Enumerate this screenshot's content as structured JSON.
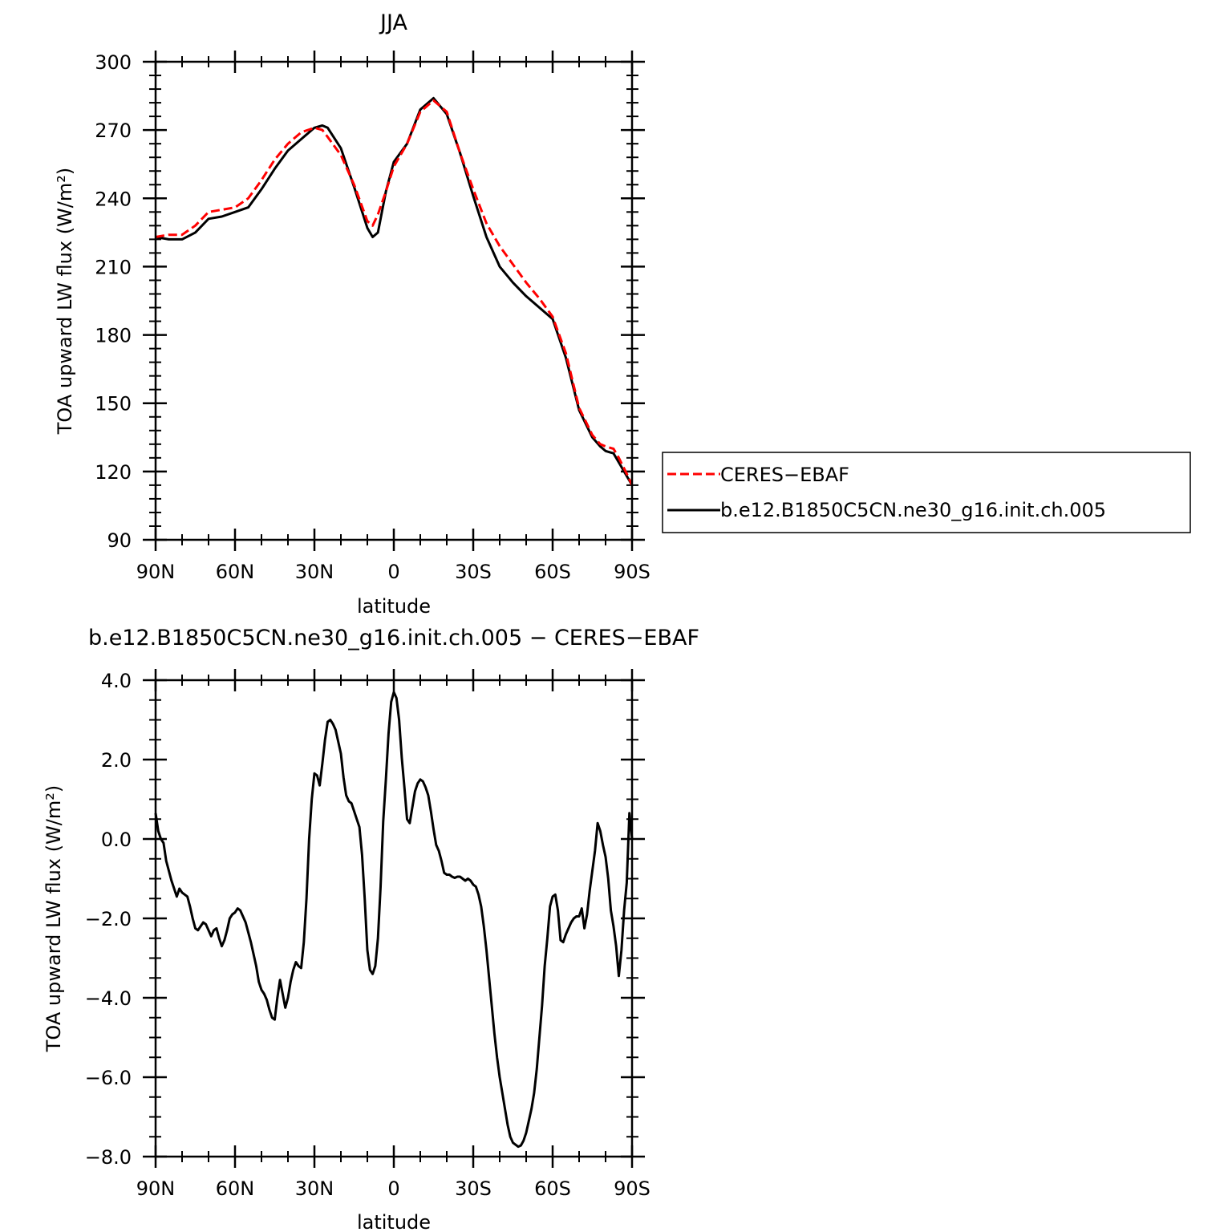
{
  "chart_data": [
    {
      "type": "line",
      "title": "JJA",
      "xlabel": "latitude",
      "ylabel": "TOA upward LW flux (W/m²)",
      "xlim": [
        90,
        -90
      ],
      "ylim": [
        90,
        300
      ],
      "xticks": [
        90,
        60,
        30,
        0,
        -30,
        -60,
        -90
      ],
      "xtick_labels": [
        "90N",
        "60N",
        "30N",
        "0",
        "30S",
        "60S",
        "90S"
      ],
      "yticks": [
        90,
        120,
        150,
        180,
        210,
        240,
        270,
        300
      ],
      "ytick_labels": [
        "90",
        "120",
        "150",
        "180",
        "210",
        "240",
        "270",
        "300"
      ],
      "grid": false,
      "legend_position": "right",
      "series": [
        {
          "name": "CERES−EBAF",
          "color": "#ff0000",
          "style": "dashed",
          "x": [
            90,
            85,
            80,
            75,
            70,
            65,
            60,
            55,
            50,
            45,
            40,
            35,
            30,
            27,
            25,
            20,
            15,
            10,
            8,
            6,
            3,
            0,
            -5,
            -10,
            -15,
            -20,
            -25,
            -30,
            -35,
            -40,
            -45,
            -50,
            -55,
            -60,
            -65,
            -70,
            -75,
            -78,
            -80,
            -83,
            -85,
            -88,
            -90
          ],
          "y": [
            223,
            224,
            224,
            228,
            234,
            235,
            236,
            240,
            248,
            257,
            264,
            269,
            271,
            270,
            267,
            259,
            246,
            230,
            228,
            233,
            243,
            254,
            264,
            278,
            283,
            278,
            260,
            244,
            229,
            219,
            211,
            203,
            196,
            188,
            172,
            148,
            136,
            132,
            131,
            130,
            126,
            119,
            114
          ]
        },
        {
          "name": "b.e12.B1850C5CN.ne30_g16.init.ch.005",
          "color": "#000000",
          "style": "solid",
          "x": [
            90,
            85,
            80,
            75,
            70,
            65,
            60,
            55,
            50,
            45,
            40,
            35,
            30,
            27,
            25,
            20,
            15,
            10,
            8,
            6,
            3,
            0,
            -5,
            -10,
            -15,
            -20,
            -25,
            -30,
            -35,
            -40,
            -45,
            -50,
            -55,
            -60,
            -65,
            -70,
            -75,
            -78,
            -80,
            -83,
            -85,
            -88,
            -90
          ],
          "y": [
            223,
            222,
            222,
            225,
            231,
            232,
            234,
            236,
            244,
            253,
            261,
            266,
            271,
            272,
            271,
            262,
            245,
            227,
            223,
            225,
            243,
            256,
            264,
            279,
            284,
            277,
            260,
            241,
            223,
            210,
            203,
            197,
            192,
            187,
            170,
            147,
            135,
            131,
            129,
            128,
            124,
            118,
            114
          ]
        }
      ]
    },
    {
      "type": "line",
      "title": "b.e12.B1850C5CN.ne30_g16.init.ch.005 − CERES−EBAF",
      "xlabel": "latitude",
      "ylabel": "TOA upward LW flux (W/m²)",
      "xlim": [
        90,
        -90
      ],
      "ylim": [
        -8,
        4
      ],
      "xticks": [
        90,
        60,
        30,
        0,
        -30,
        -60,
        -90
      ],
      "xtick_labels": [
        "90N",
        "60N",
        "30N",
        "0",
        "30S",
        "60S",
        "90S"
      ],
      "yticks": [
        -8,
        -6,
        -4,
        -2,
        0,
        2,
        4
      ],
      "ytick_labels": [
        "−8.0",
        "−6.0",
        "−4.0",
        "−2.0",
        "0.0",
        "2.0",
        "4.0"
      ],
      "grid": false,
      "series": [
        {
          "color": "#000000",
          "style": "solid",
          "x": [
            90,
            89,
            88,
            87,
            86,
            85,
            84,
            83,
            82,
            81,
            80,
            79,
            78,
            77,
            76,
            75,
            74,
            73,
            72,
            71,
            70,
            69,
            68,
            67,
            66,
            65,
            64,
            63,
            62,
            61,
            60,
            59,
            58,
            57,
            56,
            55,
            54,
            53,
            52,
            51,
            50,
            49,
            48,
            47,
            46,
            45,
            44,
            43,
            42,
            41,
            40,
            39,
            38,
            37,
            36,
            35,
            34,
            33,
            32,
            31,
            30,
            29,
            28,
            27,
            26,
            25,
            24,
            23,
            22,
            21,
            20,
            19,
            18,
            17,
            16,
            15,
            14,
            13,
            12,
            11,
            10,
            9,
            8,
            7,
            6,
            5,
            4,
            3,
            2,
            1,
            0,
            -1,
            -2,
            -3,
            -4,
            -5,
            -6,
            -7,
            -8,
            -9,
            -10,
            -11,
            -12,
            -13,
            -14,
            -15,
            -16,
            -17,
            -18,
            -19,
            -20,
            -21,
            -22,
            -23,
            -24,
            -25,
            -26,
            -27,
            -28,
            -29,
            -30,
            -31,
            -32,
            -33,
            -34,
            -35,
            -36,
            -37,
            -38,
            -39,
            -40,
            -41,
            -42,
            -43,
            -44,
            -45,
            -46,
            -47,
            -48,
            -49,
            -50,
            -51,
            -52,
            -53,
            -54,
            -55,
            -56,
            -57,
            -58,
            -59,
            -60,
            -61,
            -62,
            -63,
            -64,
            -65,
            -66,
            -67,
            -68,
            -69,
            -70,
            -71,
            -72,
            -73,
            -74,
            -75,
            -76,
            -77,
            -78,
            -79,
            -80,
            -81,
            -82,
            -83,
            -84,
            -85,
            -86,
            -87,
            -88,
            -89,
            -90
          ],
          "y": [
            0.65,
            0.2,
            0.0,
            -0.1,
            -0.55,
            -0.8,
            -1.05,
            -1.25,
            -1.45,
            -1.25,
            -1.35,
            -1.4,
            -1.45,
            -1.7,
            -2.0,
            -2.25,
            -2.3,
            -2.2,
            -2.1,
            -2.15,
            -2.3,
            -2.45,
            -2.3,
            -2.25,
            -2.5,
            -2.7,
            -2.55,
            -2.3,
            -2.0,
            -1.9,
            -1.85,
            -1.75,
            -1.8,
            -1.95,
            -2.1,
            -2.35,
            -2.6,
            -2.9,
            -3.2,
            -3.6,
            -3.8,
            -3.9,
            -4.05,
            -4.3,
            -4.5,
            -4.55,
            -4.0,
            -3.55,
            -3.9,
            -4.25,
            -4.0,
            -3.6,
            -3.3,
            -3.1,
            -3.2,
            -3.25,
            -2.6,
            -1.5,
            0.0,
            1.0,
            1.65,
            1.6,
            1.35,
            1.9,
            2.5,
            2.95,
            3.0,
            2.9,
            2.75,
            2.45,
            2.15,
            1.55,
            1.1,
            0.95,
            0.9,
            0.7,
            0.5,
            0.3,
            -0.4,
            -1.5,
            -2.8,
            -3.3,
            -3.4,
            -3.2,
            -2.5,
            -1.2,
            0.45,
            1.5,
            2.65,
            3.45,
            3.7,
            3.55,
            3.0,
            2.05,
            1.3,
            0.5,
            0.4,
            0.8,
            1.2,
            1.4,
            1.5,
            1.45,
            1.3,
            1.1,
            0.7,
            0.25,
            -0.15,
            -0.3,
            -0.55,
            -0.85,
            -0.9,
            -0.9,
            -0.95,
            -0.98,
            -0.95,
            -0.95,
            -1.0,
            -1.05,
            -1.0,
            -1.05,
            -1.15,
            -1.2,
            -1.4,
            -1.7,
            -2.2,
            -2.8,
            -3.5,
            -4.2,
            -4.9,
            -5.5,
            -6.0,
            -6.4,
            -6.8,
            -7.2,
            -7.5,
            -7.65,
            -7.7,
            -7.75,
            -7.72,
            -7.6,
            -7.4,
            -7.1,
            -6.8,
            -6.4,
            -5.8,
            -5.0,
            -4.2,
            -3.2,
            -2.5,
            -1.7,
            -1.45,
            -1.4,
            -1.8,
            -2.55,
            -2.6,
            -2.4,
            -2.25,
            -2.1,
            -2.0,
            -1.95,
            -1.95,
            -1.75,
            -2.25,
            -1.9,
            -1.3,
            -0.8,
            -0.3,
            0.4,
            0.2,
            -0.15,
            -0.45,
            -1.0,
            -1.8,
            -2.2,
            -2.7,
            -3.45,
            -2.8,
            -1.8,
            -1.1,
            0.65,
            0.0
          ]
        }
      ]
    }
  ]
}
